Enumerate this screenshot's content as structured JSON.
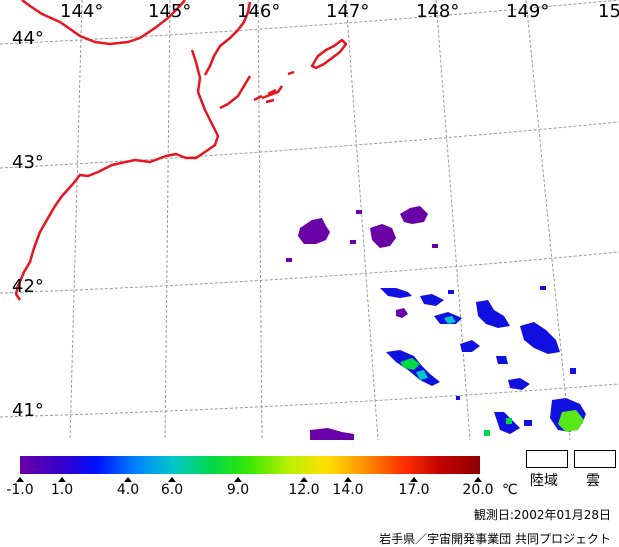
{
  "map": {
    "longitude_labels": [
      "144°",
      "145°",
      "146°",
      "147°",
      "148°",
      "149°",
      "15"
    ],
    "latitude_labels": [
      "44°",
      "43°",
      "42°",
      "41°"
    ],
    "coastline_color": "#e8141e",
    "grid_color": "#9a9a9a",
    "data_colormap": "purple-blue-green-yellow-red"
  },
  "colorbar": {
    "gradient_colors": [
      "#6a00a8",
      "#3a00c8",
      "#0010ff",
      "#0080ff",
      "#00c8c8",
      "#00d84a",
      "#38e800",
      "#b8f000",
      "#ffe000",
      "#ff9000",
      "#ff3000",
      "#c00000",
      "#900000"
    ],
    "ticks": [
      "-1.0",
      "1.0",
      "4.0",
      "6.0",
      "9.0",
      "12.0",
      "14.0",
      "17.0",
      "20.0"
    ],
    "unit": "℃"
  },
  "legend": {
    "land_label": "陸域",
    "cloud_label": "雲"
  },
  "observation_date": "観測日:2002年01月28日",
  "credit": "岩手県／宇宙開発事業団 共同プロジェクト"
}
